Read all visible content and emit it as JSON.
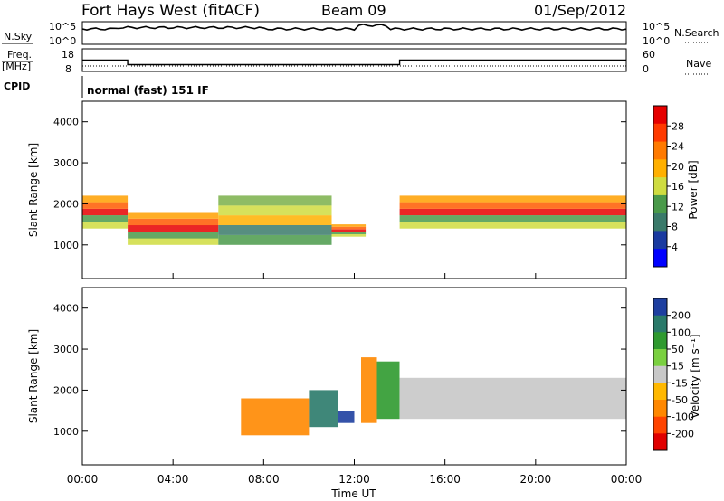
{
  "header": {
    "station": "Fort Hays West (fitACF)",
    "beam": "Beam 09",
    "date": "01/Sep/2012"
  },
  "panels": {
    "nsky": {
      "label": "N.Sky",
      "left_ticks": [
        "10^5",
        "10^0"
      ],
      "right_ticks": [
        "10^5",
        "10^0"
      ],
      "right_label": "N.Search"
    },
    "freq": {
      "label_line1": "Freq.",
      "label_line2": "[MHz]",
      "left_ticks": [
        "18",
        "8"
      ],
      "right_ticks": [
        "60",
        "0"
      ],
      "right_label": "Nave"
    },
    "cpid": {
      "label": "CPID",
      "mode": "normal (fast) 151 IF"
    },
    "power": {
      "ylabel": "Slant Range [km]",
      "yticks": [
        "4000",
        "3000",
        "2000",
        "1000"
      ],
      "colorbar_label": "Power [dB]",
      "colorbar_ticks": [
        "28",
        "24",
        "20",
        "16",
        "12",
        "8",
        "4"
      ],
      "colorbar_colors": [
        "#e60000",
        "#ff3a00",
        "#ff7a00",
        "#ffb000",
        "#cfdc40",
        "#4a9a4a",
        "#3a7a6a",
        "#1a3aa0",
        "#0000ff"
      ]
    },
    "velocity": {
      "ylabel": "Slant Range [km]",
      "yticks": [
        "4000",
        "3000",
        "2000",
        "1000"
      ],
      "colorbar_label": "Velocity [m s⁻¹]",
      "colorbar_ticks": [
        "200",
        "100",
        "50",
        "15",
        "-15",
        "-50",
        "-100",
        "-200"
      ],
      "colorbar_colors": [
        "#1e3fa0",
        "#2a7a6a",
        "#2f9a2f",
        "#7ad040",
        "#c8c8c8",
        "#ffb800",
        "#ff8800",
        "#ff4400",
        "#e00000"
      ]
    }
  },
  "xaxis": {
    "label": "Time UT",
    "ticks": [
      "00:00",
      "04:00",
      "08:00",
      "12:00",
      "16:00",
      "20:00",
      "00:00"
    ]
  },
  "chart_data": {
    "type": "heatmap",
    "title": "Fort Hays West (fitACF)",
    "xlabel": "Time UT",
    "ylabel": "Slant Range [km]",
    "xlim_hours": [
      0,
      24
    ],
    "ylim_km": [
      180,
      4500
    ],
    "freq_series": {
      "name": "Freq. [MHz]",
      "segments": [
        {
          "start_hour": 0,
          "end_hour": 2,
          "value": 13
        },
        {
          "start_hour": 2,
          "end_hour": 14,
          "value": 11
        },
        {
          "start_hour": 14,
          "end_hour": 24,
          "value": 13
        }
      ]
    },
    "power_bands": [
      {
        "start_hour": 0,
        "end_hour": 2,
        "range_from_km": 1400,
        "range_to_km": 2200,
        "level": "high"
      },
      {
        "start_hour": 2,
        "end_hour": 6,
        "range_from_km": 1000,
        "range_to_km": 1800,
        "level": "high"
      },
      {
        "start_hour": 6,
        "end_hour": 11,
        "range_from_km": 1000,
        "range_to_km": 2200,
        "level": "medium"
      },
      {
        "start_hour": 11,
        "end_hour": 12.5,
        "range_from_km": 1200,
        "range_to_km": 1500,
        "level": "high"
      },
      {
        "start_hour": 14,
        "end_hour": 24,
        "range_from_km": 1400,
        "range_to_km": 2200,
        "level": "high"
      }
    ],
    "velocity_bands": [
      {
        "start_hour": 7,
        "end_hour": 10,
        "range_from_km": 900,
        "range_to_km": 1800,
        "velocity_ms": -60
      },
      {
        "start_hour": 10,
        "end_hour": 11.3,
        "range_from_km": 1100,
        "range_to_km": 2000,
        "velocity_ms": 120
      },
      {
        "start_hour": 11.3,
        "end_hour": 12,
        "range_from_km": 1200,
        "range_to_km": 1500,
        "velocity_ms": 200
      },
      {
        "start_hour": 12.3,
        "end_hour": 13,
        "range_from_km": 1200,
        "range_to_km": 2800,
        "velocity_ms": -80
      },
      {
        "start_hour": 13,
        "end_hour": 14,
        "range_from_km": 1300,
        "range_to_km": 2700,
        "velocity_ms": 40
      },
      {
        "start_hour": 14,
        "end_hour": 24,
        "range_from_km": 1300,
        "range_to_km": 2300,
        "velocity_ms": 0
      }
    ]
  }
}
